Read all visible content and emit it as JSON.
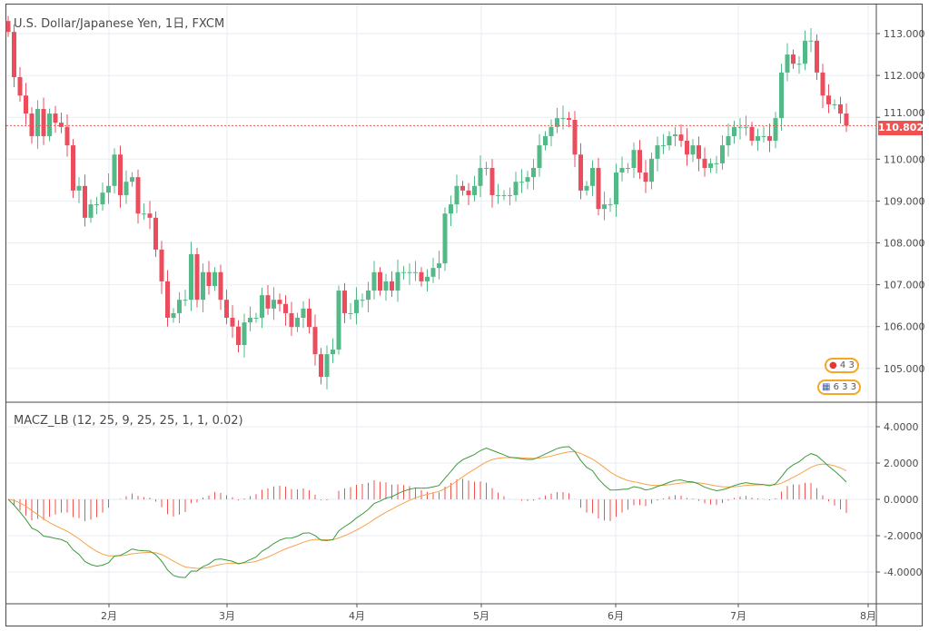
{
  "title": "U.S. Dollar/Japanese Yen, 1日, FXCM",
  "indicator_title": "MACZ_LB (12, 25, 9, 25, 25, 1, 1, 0.02)",
  "last_price_label": "110.802",
  "events": [
    {
      "icon": "jp-flag-icon",
      "label": "4 3"
    },
    {
      "icon": "us-flag-icon",
      "label": "6 3 3"
    }
  ],
  "colors": {
    "up": "#53b987",
    "down": "#eb4d5c",
    "macd": "#3c9a3c",
    "signal": "#f7a34a",
    "hist": "#ef5350",
    "grid": "#e6eef5"
  },
  "chart_data": [
    {
      "type": "candlestick",
      "title": "U.S. Dollar/Japanese Yen, 1日, FXCM",
      "ylim": [
        104.3,
        113.7
      ],
      "yticks": [
        "113.000",
        "112.000",
        "111.000",
        "110.000",
        "109.000",
        "108.000",
        "107.000",
        "106.000",
        "105.000"
      ],
      "xticks": [
        "2月",
        "3月",
        "4月",
        "5月",
        "6月",
        "7月",
        "8月"
      ],
      "first_open": 113.3,
      "close": [
        113.04,
        111.96,
        111.52,
        111.09,
        110.55,
        111.2,
        110.55,
        111.09,
        110.87,
        110.77,
        110.33,
        109.25,
        109.36,
        108.6,
        108.92,
        108.92,
        109.2,
        109.36,
        110.11,
        109.14,
        109.46,
        109.57,
        108.7,
        108.7,
        108.6,
        107.84,
        107.08,
        106.21,
        106.32,
        106.64,
        106.64,
        107.73,
        106.64,
        107.3,
        106.97,
        107.3,
        106.64,
        106.21,
        106.0,
        105.56,
        106.1,
        106.21,
        106.21,
        106.75,
        106.43,
        106.64,
        106.54,
        106.32,
        105.99,
        106.21,
        106.43,
        105.99,
        105.34,
        104.8,
        105.34,
        105.45,
        106.86,
        106.32,
        106.32,
        106.64,
        106.64,
        106.86,
        107.3,
        106.86,
        107.08,
        106.86,
        107.3,
        107.3,
        107.3,
        107.3,
        107.08,
        107.19,
        107.4,
        107.51,
        108.7,
        108.92,
        109.36,
        109.25,
        109.14,
        109.36,
        109.79,
        109.79,
        109.14,
        109.14,
        109.14,
        109.14,
        109.46,
        109.46,
        109.57,
        109.79,
        110.33,
        110.55,
        110.77,
        110.98,
        110.98,
        110.94,
        110.11,
        109.25,
        109.36,
        109.79,
        108.81,
        108.92,
        108.92,
        109.68,
        109.79,
        109.79,
        110.22,
        109.68,
        109.46,
        110.01,
        110.33,
        110.33,
        110.55,
        110.59,
        110.44,
        110.11,
        110.33,
        110.01,
        109.79,
        109.9,
        109.9,
        110.33,
        110.55,
        110.77,
        110.77,
        110.77,
        110.44,
        110.55,
        110.55,
        110.44,
        110.98,
        112.07,
        112.5,
        112.28,
        112.28,
        112.83,
        112.83,
        112.07,
        111.52,
        111.31,
        111.31,
        111.09,
        110.8
      ],
      "last_price": 110.802
    },
    {
      "type": "line",
      "title": "MACZ_LB (12, 25, 9, 25, 25, 1, 1, 0.02)",
      "ylim": [
        -5.4,
        4.6
      ],
      "yticks": [
        "4.0000",
        "2.0000",
        "0.0000",
        "-2.0000",
        "-4.0000"
      ],
      "series": [
        {
          "name": "MACZ",
          "params": [
            12,
            25
          ]
        },
        {
          "name": "Signal",
          "params": [
            9
          ]
        },
        {
          "name": "Histogram"
        }
      ]
    }
  ]
}
